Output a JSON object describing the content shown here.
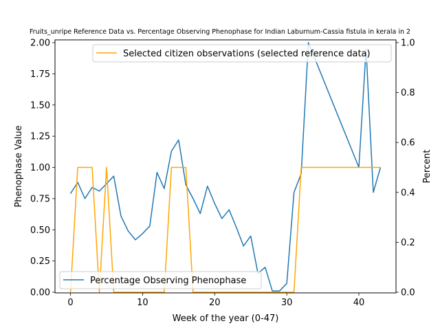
{
  "chart_data": {
    "type": "line",
    "title": "Fruits_unripe Reference Data vs. Percentage Observing Phenophase for Indian Laburnum-Cassia fistula in kerala in 2",
    "xlabel": "Week of the year (0-47)",
    "ylabel_left": "Phenophase Value",
    "ylabel_right": "Percent",
    "xlim": [
      -2.15,
      45.15
    ],
    "ylim_left": [
      0,
      2.0
    ],
    "ylim_right": [
      0,
      1.0
    ],
    "xticks": [
      "0",
      "10",
      "20",
      "30",
      "40"
    ],
    "yticks_left": [
      "0.00",
      "0.25",
      "0.50",
      "0.75",
      "1.00",
      "1.25",
      "1.50",
      "1.75",
      "2.00"
    ],
    "yticks_right": [
      "0.0",
      "0.2",
      "0.4",
      "0.6",
      "0.8",
      "1.0"
    ],
    "grid": false,
    "series": [
      {
        "name": "Percentage Observing Phenophase",
        "axis": "left",
        "color": "#1f77b4",
        "legend_position": "lower-left",
        "x": [
          0,
          1,
          2,
          3,
          4,
          5,
          6,
          7,
          8,
          9,
          10,
          11,
          12,
          13,
          14,
          15,
          16,
          17,
          18,
          19,
          20,
          21,
          22,
          23,
          24,
          25,
          26,
          27,
          28,
          29,
          30,
          31,
          32,
          33,
          40,
          41,
          42,
          43
        ],
        "values": [
          0.79,
          0.88,
          0.75,
          0.84,
          0.81,
          0.87,
          0.93,
          0.61,
          0.49,
          0.42,
          0.47,
          0.53,
          0.96,
          0.83,
          1.13,
          1.22,
          0.86,
          0.75,
          0.63,
          0.85,
          0.71,
          0.59,
          0.66,
          0.52,
          0.37,
          0.45,
          0.15,
          0.2,
          0.01,
          0.01,
          0.07,
          0.8,
          0.95,
          2.0,
          1.0,
          1.95,
          0.8,
          1.0
        ]
      },
      {
        "name": "Selected citizen observations (selected reference data)",
        "axis": "right",
        "color": "#ffa500",
        "legend_position": "upper-right",
        "x": [
          0,
          1,
          2,
          3,
          4,
          5,
          6,
          7,
          8,
          9,
          10,
          11,
          12,
          13,
          14,
          15,
          16,
          17,
          18,
          19,
          20,
          21,
          22,
          23,
          24,
          25,
          26,
          27,
          28,
          29,
          30,
          31,
          32,
          33,
          34,
          35,
          36,
          37,
          38,
          39,
          40,
          41,
          42,
          43
        ],
        "values": [
          0,
          0.5,
          0.5,
          0.5,
          0,
          0.5,
          0,
          0,
          0,
          0,
          0,
          0,
          0,
          0,
          0.5,
          0.5,
          0.5,
          0,
          0,
          0,
          0,
          0,
          0,
          0,
          0,
          0,
          0,
          0,
          0,
          0,
          0,
          0,
          0.5,
          0.5,
          0.5,
          0.5,
          0.5,
          0.5,
          0.5,
          0.5,
          0.5,
          0.5,
          0.5,
          0.5
        ]
      }
    ]
  }
}
